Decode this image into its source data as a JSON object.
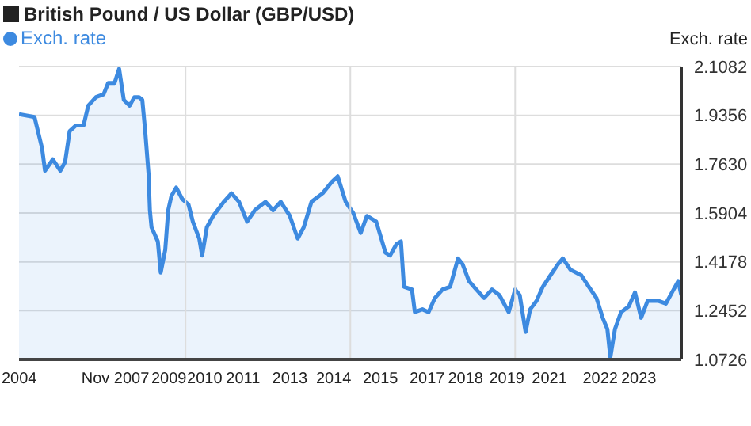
{
  "chart_data": {
    "type": "area",
    "title": "British Pound / US Dollar (GBP/USD)",
    "ylabel": "Exch. rate",
    "legend": "top left",
    "grid": true,
    "x": [
      "2004-12-13",
      "2005-06-02",
      "2005-08-25",
      "2005-09-27",
      "2005-12-23",
      "2006-03-16",
      "2006-05-07",
      "2006-06-27",
      "2006-09-05",
      "2006-11-28",
      "2007-01-19",
      "2007-04-15",
      "2007-07-08",
      "2007-08-28",
      "2007-11-07",
      "2007-12-27",
      "2008-02-17",
      "2008-04-22",
      "2008-06-13",
      "2008-08-03",
      "2008-09-09",
      "2008-10-11",
      "2008-11-17",
      "2008-12-02",
      "2008-12-20",
      "2009-02-28",
      "2009-04-01",
      "2009-05-21",
      "2009-06-23",
      "2009-07-28",
      "2009-09-20",
      "2009-11-25",
      "2010-02-03",
      "2010-03-23",
      "2010-06-02",
      "2010-07-04",
      "2010-08-25",
      "2010-11-03",
      "2011-03-02",
      "2011-05-25",
      "2011-08-17",
      "2011-11-14",
      "2012-02-07",
      "2012-06-05",
      "2012-08-28",
      "2012-11-21",
      "2013-03-02",
      "2013-05-28",
      "2013-08-03",
      "2013-10-28",
      "2014-02-28",
      "2014-06-09",
      "2014-08-14",
      "2014-11-10",
      "2015-02-03",
      "2015-04-26",
      "2015-07-04",
      "2015-10-15",
      "2016-01-26",
      "2016-03-16",
      "2016-05-25",
      "2016-07-15",
      "2016-08-17",
      "2016-11-14",
      "2016-12-16",
      "2017-03-09",
      "2017-05-17",
      "2017-07-26",
      "2017-10-19",
      "2018-01-11",
      "2018-04-08",
      "2018-05-28",
      "2018-08-07",
      "2018-10-28",
      "2019-01-22",
      "2019-04-19",
      "2019-07-11",
      "2019-10-22",
      "2020-01-01",
      "2020-02-21",
      "2020-04-26",
      "2020-06-16",
      "2020-08-25",
      "2020-11-03",
      "2021-01-26",
      "2021-04-22",
      "2021-06-13",
      "2021-09-05",
      "2022-01-04",
      "2022-03-27",
      "2022-06-20",
      "2022-08-28",
      "2022-10-19",
      "2022-11-21",
      "2023-01-11",
      "2023-03-20",
      "2023-06-13",
      "2023-08-21",
      "2023-10-28",
      "2024-01-08",
      "2024-05-03",
      "2024-07-28",
      "2024-10-22",
      "2024-12-13",
      "2025-01-15"
    ],
    "series": [
      {
        "name": "Exch. rate",
        "color": "#3d8ae0",
        "values": [
          1.94,
          1.93,
          1.82,
          1.74,
          1.78,
          1.74,
          1.77,
          1.88,
          1.9,
          1.9,
          1.97,
          2.0,
          2.01,
          2.05,
          2.05,
          2.1,
          1.99,
          1.97,
          2.0,
          2.0,
          1.99,
          1.88,
          1.73,
          1.6,
          1.54,
          1.49,
          1.38,
          1.46,
          1.6,
          1.65,
          1.68,
          1.64,
          1.62,
          1.56,
          1.5,
          1.44,
          1.54,
          1.58,
          1.63,
          1.66,
          1.63,
          1.56,
          1.6,
          1.63,
          1.6,
          1.63,
          1.58,
          1.5,
          1.54,
          1.63,
          1.66,
          1.7,
          1.72,
          1.63,
          1.59,
          1.52,
          1.58,
          1.56,
          1.45,
          1.44,
          1.48,
          1.49,
          1.33,
          1.32,
          1.24,
          1.25,
          1.24,
          1.29,
          1.32,
          1.33,
          1.43,
          1.41,
          1.35,
          1.32,
          1.29,
          1.32,
          1.3,
          1.24,
          1.32,
          1.3,
          1.17,
          1.25,
          1.28,
          1.33,
          1.37,
          1.41,
          1.43,
          1.39,
          1.37,
          1.33,
          1.29,
          1.22,
          1.18,
          1.08,
          1.18,
          1.24,
          1.26,
          1.31,
          1.22,
          1.28,
          1.28,
          1.27,
          1.32,
          1.35,
          1.3
        ]
      }
    ],
    "xlim": [
      "2004-12-13",
      "2025-01-15"
    ],
    "xticks": [
      {
        "value": "2004-12-15",
        "label": "2004"
      },
      {
        "value": "2007-11-15",
        "label": "Nov 2007"
      },
      {
        "value": "2009-07-01",
        "label": "2009"
      },
      {
        "value": "2010-01-01",
        "label": null
      },
      {
        "value": "2010-08-01",
        "label": "2010"
      },
      {
        "value": "2011-10-01",
        "label": "2011"
      },
      {
        "value": "2013-03-01",
        "label": "2013"
      },
      {
        "value": "2014-07-01",
        "label": "2014"
      },
      {
        "value": "2015-01-01",
        "label": null
      },
      {
        "value": "2015-12-01",
        "label": "2015"
      },
      {
        "value": "2017-05-01",
        "label": "2017"
      },
      {
        "value": "2018-07-01",
        "label": "2018"
      },
      {
        "value": "2019-10-01",
        "label": "2019"
      },
      {
        "value": "2020-01-01",
        "label": null
      },
      {
        "value": "2021-01-15",
        "label": "2021"
      },
      {
        "value": "2022-08-01",
        "label": "2022"
      },
      {
        "value": "2023-10-01",
        "label": "2023"
      }
    ],
    "ylim": [
      1.0726,
      2.1082
    ],
    "yticks": [
      1.0726,
      1.2452,
      1.4178,
      1.5904,
      {
        "value": 1.763,
        "label": "1.7630"
      },
      1.9356,
      2.1082
    ]
  }
}
